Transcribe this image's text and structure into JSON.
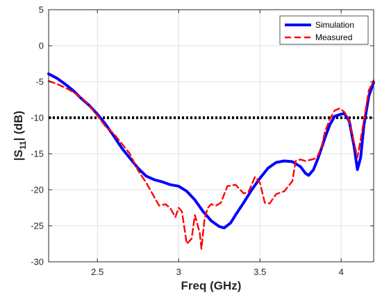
{
  "chart_data": {
    "type": "line",
    "xlabel": "Freq (GHz)",
    "ylabel_main": "|S",
    "ylabel_sub": "11",
    "ylabel_tail": "| (dB)",
    "xlim": [
      2.2,
      4.2
    ],
    "ylim": [
      -30,
      5
    ],
    "xticks": [
      2.5,
      3,
      3.5,
      4
    ],
    "yticks": [
      5,
      0,
      -5,
      -10,
      -15,
      -20,
      -25,
      -30
    ],
    "grid": true,
    "legend_position": "top-right",
    "reference_line": {
      "y": -10,
      "color": "#000000",
      "style": "dotted"
    },
    "series": [
      {
        "name": "Simulation",
        "color": "#0000ff",
        "style": "solid",
        "points": [
          [
            2.2,
            -3.9
          ],
          [
            2.25,
            -4.5
          ],
          [
            2.3,
            -5.3
          ],
          [
            2.35,
            -6.2
          ],
          [
            2.4,
            -7.3
          ],
          [
            2.45,
            -8.3
          ],
          [
            2.5,
            -9.5
          ],
          [
            2.55,
            -10.9
          ],
          [
            2.6,
            -12.5
          ],
          [
            2.65,
            -14.2
          ],
          [
            2.7,
            -15.6
          ],
          [
            2.75,
            -17.0
          ],
          [
            2.8,
            -18.1
          ],
          [
            2.85,
            -18.6
          ],
          [
            2.9,
            -18.9
          ],
          [
            2.95,
            -19.3
          ],
          [
            3.0,
            -19.5
          ],
          [
            3.05,
            -20.2
          ],
          [
            3.1,
            -21.4
          ],
          [
            3.15,
            -23.0
          ],
          [
            3.2,
            -24.3
          ],
          [
            3.25,
            -25.1
          ],
          [
            3.28,
            -25.3
          ],
          [
            3.32,
            -24.6
          ],
          [
            3.35,
            -23.5
          ],
          [
            3.4,
            -21.8
          ],
          [
            3.45,
            -20.0
          ],
          [
            3.5,
            -18.4
          ],
          [
            3.55,
            -17.0
          ],
          [
            3.6,
            -16.2
          ],
          [
            3.65,
            -16.0
          ],
          [
            3.7,
            -16.1
          ],
          [
            3.75,
            -16.8
          ],
          [
            3.78,
            -17.7
          ],
          [
            3.8,
            -18.0
          ],
          [
            3.83,
            -17.2
          ],
          [
            3.86,
            -15.5
          ],
          [
            3.9,
            -12.8
          ],
          [
            3.93,
            -11.0
          ],
          [
            3.96,
            -9.8
          ],
          [
            4.0,
            -9.5
          ],
          [
            4.02,
            -9.4
          ],
          [
            4.05,
            -10.5
          ],
          [
            4.08,
            -14.0
          ],
          [
            4.1,
            -17.2
          ],
          [
            4.12,
            -15.5
          ],
          [
            4.14,
            -11.0
          ],
          [
            4.17,
            -7.0
          ],
          [
            4.2,
            -5.1
          ]
        ]
      },
      {
        "name": "Measured",
        "color": "#ff0000",
        "style": "dashed",
        "points": [
          [
            2.2,
            -4.9
          ],
          [
            2.25,
            -5.3
          ],
          [
            2.3,
            -5.8
          ],
          [
            2.35,
            -6.4
          ],
          [
            2.4,
            -7.2
          ],
          [
            2.45,
            -8.3
          ],
          [
            2.5,
            -9.7
          ],
          [
            2.55,
            -11.2
          ],
          [
            2.6,
            -12.2
          ],
          [
            2.65,
            -13.6
          ],
          [
            2.7,
            -15.0
          ],
          [
            2.75,
            -17.3
          ],
          [
            2.8,
            -19.0
          ],
          [
            2.85,
            -21.0
          ],
          [
            2.88,
            -22.2
          ],
          [
            2.92,
            -22.0
          ],
          [
            2.95,
            -22.6
          ],
          [
            2.98,
            -23.8
          ],
          [
            3.0,
            -22.5
          ],
          [
            3.02,
            -23.0
          ],
          [
            3.05,
            -27.5
          ],
          [
            3.08,
            -26.8
          ],
          [
            3.1,
            -23.5
          ],
          [
            3.13,
            -26.0
          ],
          [
            3.14,
            -28.2
          ],
          [
            3.16,
            -24.0
          ],
          [
            3.18,
            -22.5
          ],
          [
            3.2,
            -22.0
          ],
          [
            3.23,
            -22.2
          ],
          [
            3.26,
            -21.8
          ],
          [
            3.3,
            -19.5
          ],
          [
            3.35,
            -19.3
          ],
          [
            3.4,
            -20.5
          ],
          [
            3.43,
            -20.3
          ],
          [
            3.47,
            -18.2
          ],
          [
            3.5,
            -19.0
          ],
          [
            3.53,
            -21.8
          ],
          [
            3.56,
            -21.9
          ],
          [
            3.6,
            -20.6
          ],
          [
            3.65,
            -20.2
          ],
          [
            3.7,
            -18.8
          ],
          [
            3.72,
            -16.0
          ],
          [
            3.75,
            -15.8
          ],
          [
            3.78,
            -16.0
          ],
          [
            3.82,
            -15.8
          ],
          [
            3.85,
            -15.6
          ],
          [
            3.88,
            -14.0
          ],
          [
            3.9,
            -12.0
          ],
          [
            3.93,
            -10.2
          ],
          [
            3.96,
            -9.0
          ],
          [
            3.99,
            -8.7
          ],
          [
            4.02,
            -9.2
          ],
          [
            4.05,
            -10.5
          ],
          [
            4.08,
            -13.5
          ],
          [
            4.1,
            -15.5
          ],
          [
            4.12,
            -13.0
          ],
          [
            4.15,
            -9.0
          ],
          [
            4.17,
            -6.2
          ],
          [
            4.2,
            -4.8
          ]
        ]
      }
    ]
  }
}
